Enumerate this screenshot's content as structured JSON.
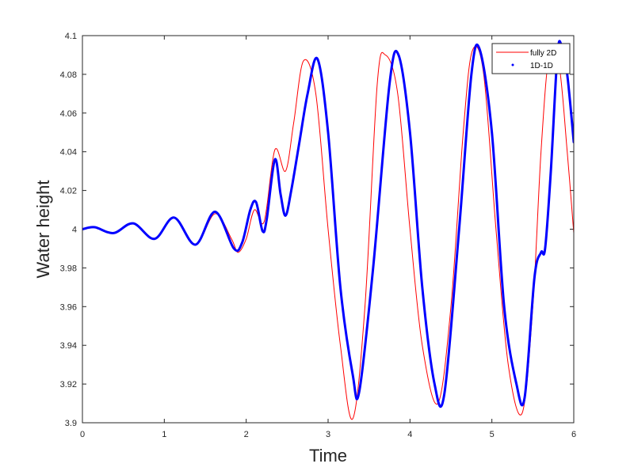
{
  "chart_data": {
    "type": "line",
    "title": "",
    "xlabel": "Time",
    "ylabel": "Water height",
    "xlim": [
      0,
      6
    ],
    "ylim": [
      3.9,
      4.1
    ],
    "xticks": [
      0,
      1,
      2,
      3,
      4,
      5,
      6
    ],
    "xtick_labels": [
      "0",
      "1",
      "2",
      "3",
      "4",
      "5",
      "6"
    ],
    "yticks": [
      3.9,
      3.92,
      3.94,
      3.96,
      3.98,
      4.0,
      4.02,
      4.04,
      4.06,
      4.08,
      4.1
    ],
    "ytick_labels": [
      "3.9",
      "3.92",
      "3.94",
      "3.96",
      "3.98",
      "4",
      "4.02",
      "4.04",
      "4.06",
      "4.08",
      "4.1"
    ],
    "grid": false,
    "legend_position": "top-right",
    "series": [
      {
        "name": "fully 2D",
        "color": "#ff0000",
        "style": "thin-line",
        "x": [
          0,
          0.15,
          0.38,
          0.62,
          0.88,
          1.12,
          1.38,
          1.62,
          1.82,
          1.9,
          2.0,
          2.1,
          2.22,
          2.35,
          2.48,
          2.58,
          2.7,
          2.85,
          3.0,
          3.15,
          3.3,
          3.45,
          3.6,
          3.7,
          3.85,
          4.0,
          4.15,
          4.34,
          4.5,
          4.65,
          4.76,
          4.9,
          5.05,
          5.2,
          5.37,
          5.5,
          5.6,
          5.7,
          5.82,
          5.92,
          6.0
        ],
        "y": [
          4.0,
          4.001,
          3.998,
          4.003,
          3.995,
          4.006,
          3.992,
          4.008,
          3.995,
          3.988,
          3.995,
          4.01,
          4.004,
          4.041,
          4.03,
          4.055,
          4.087,
          4.07,
          4.0,
          3.94,
          3.902,
          3.96,
          4.075,
          4.09,
          4.07,
          4.0,
          3.94,
          3.91,
          3.96,
          4.05,
          4.092,
          4.08,
          4.0,
          3.93,
          3.905,
          3.96,
          4.04,
          4.09,
          4.085,
          4.04,
          3.998
        ]
      },
      {
        "name": "1D-1D",
        "color": "#0000ff",
        "style": "dotted-thick",
        "x": [
          0,
          0.15,
          0.38,
          0.62,
          0.88,
          1.12,
          1.38,
          1.62,
          1.85,
          1.95,
          2.05,
          2.12,
          2.2,
          2.25,
          2.35,
          2.42,
          2.48,
          2.55,
          2.65,
          2.75,
          2.87,
          3.0,
          3.15,
          3.3,
          3.38,
          3.55,
          3.75,
          3.86,
          4.0,
          4.15,
          4.3,
          4.42,
          4.6,
          4.75,
          4.85,
          5.0,
          5.15,
          5.3,
          5.4,
          5.52,
          5.6,
          5.65,
          5.72,
          5.8,
          5.85,
          5.92,
          6.0
        ],
        "y": [
          4.0,
          4.001,
          3.998,
          4.003,
          3.995,
          4.006,
          3.992,
          4.009,
          3.99,
          3.993,
          4.01,
          4.014,
          3.999,
          4.005,
          4.036,
          4.018,
          4.007,
          4.02,
          4.045,
          4.07,
          4.088,
          4.05,
          3.97,
          3.925,
          3.916,
          3.98,
          4.075,
          4.09,
          4.05,
          3.97,
          3.92,
          3.915,
          4.0,
          4.08,
          4.093,
          4.05,
          3.96,
          3.92,
          3.913,
          3.975,
          3.988,
          3.99,
          4.03,
          4.09,
          4.095,
          4.08,
          4.045
        ]
      }
    ]
  }
}
